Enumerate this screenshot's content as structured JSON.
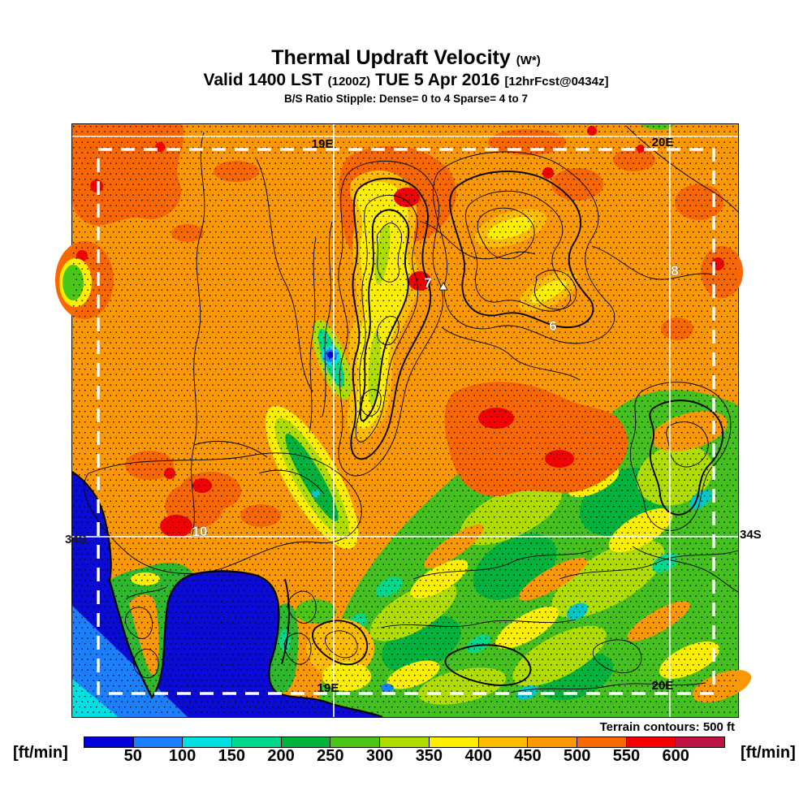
{
  "header": {
    "title_main": "Thermal Updraft Velocity",
    "title_suffix": "(W*)",
    "valid_prefix": "Valid 1400 LST",
    "valid_zulu": "(1200Z)",
    "valid_date": "TUE 5 Apr 2016",
    "valid_fcst": "[12hrFcst@0434z]",
    "stipple_note": "B/S Ratio Stipple:  Dense= 0 to 4  Sparse= 4 to 7"
  },
  "map": {
    "grid_labels": {
      "top_19e": "19E",
      "top_20e": "20E",
      "bottom_19e": "19E",
      "bottom_20e": "20E",
      "right_34s": "34S",
      "left_34s": "34S"
    },
    "site_labels": [
      {
        "text": "10"
      },
      {
        "text": "8"
      },
      {
        "text": "7"
      },
      {
        "text": "6"
      }
    ]
  },
  "footer": {
    "terrain_note": "Terrain contours: 500 ft",
    "units_left": "[ft/min]",
    "units_right": "[ft/min]",
    "colorbar": {
      "tick_labels": [
        "50",
        "100",
        "150",
        "200",
        "250",
        "300",
        "350",
        "400",
        "450",
        "500",
        "550",
        "600"
      ],
      "colors": [
        "#0000DD",
        "#1C7FFF",
        "#00E0E0",
        "#00D98C",
        "#00B33C",
        "#4AC616",
        "#B0DD00",
        "#FFEE00",
        "#FFBB00",
        "#FC9803",
        "#F96800",
        "#F50000",
        "#BD1342"
      ]
    }
  },
  "legend_scale": {
    "units": "ft/min",
    "boundaries": [
      50,
      100,
      150,
      200,
      250,
      300,
      350,
      400,
      450,
      500,
      550,
      600
    ]
  }
}
